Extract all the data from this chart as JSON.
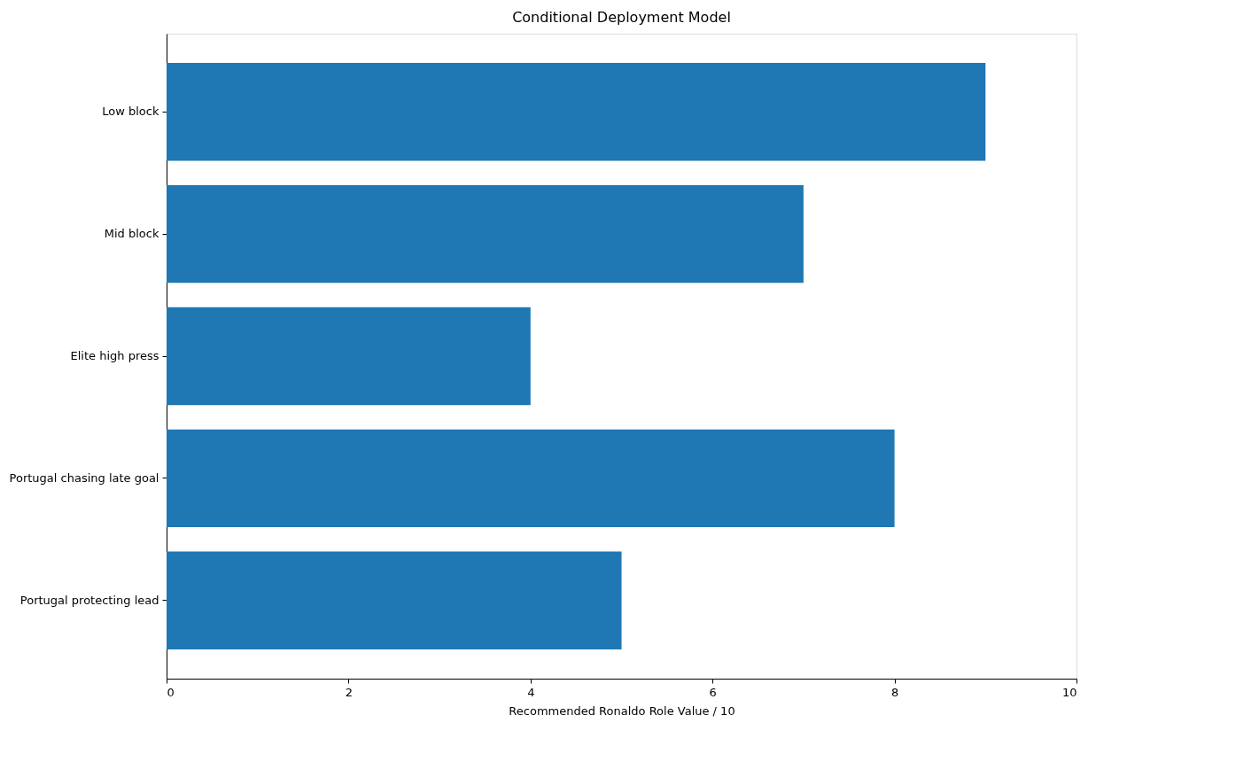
{
  "chart_data": {
    "type": "bar",
    "orientation": "horizontal",
    "title": "Conditional Deployment Model",
    "xlabel": "Recommended Ronaldo Role Value / 10",
    "categories": [
      "Low block",
      "Mid block",
      "Elite high press",
      "Portugal chasing late goal",
      "Portugal protecting lead"
    ],
    "values": [
      9,
      7,
      4,
      8,
      5
    ],
    "color": "#1f77b4",
    "xlim": [
      0,
      10
    ],
    "xticks": [
      0,
      2,
      4,
      6,
      8,
      10
    ],
    "grid": false
  }
}
